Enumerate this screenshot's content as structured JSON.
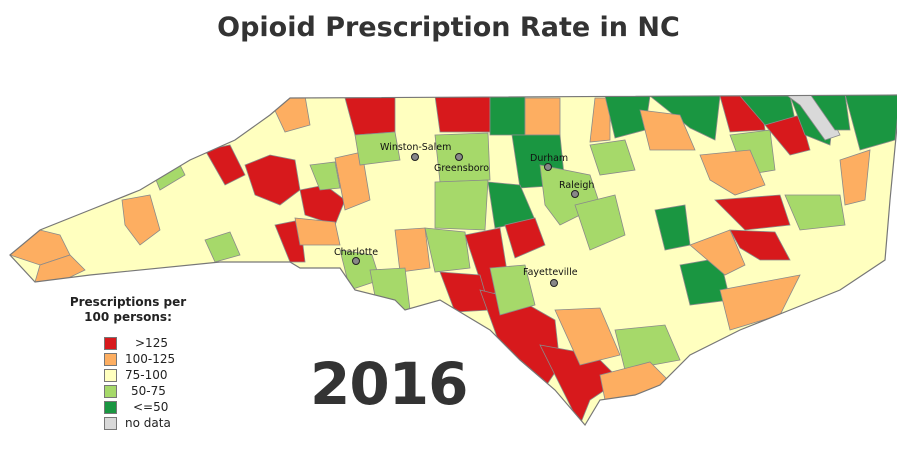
{
  "title": "Opioid Prescription Rate in NC",
  "year": "2016",
  "legend": {
    "title_line1": "Prescriptions per",
    "title_line2": "100 persons:",
    "items": [
      {
        "label": ">125",
        "color": "#d7191c"
      },
      {
        "label": "100-125",
        "color": "#fdae61"
      },
      {
        "label": "75-100",
        "color": "#ffffbf"
      },
      {
        "label": "50-75",
        "color": "#a6d96a"
      },
      {
        "label": "<=50",
        "color": "#1a9641"
      },
      {
        "label": "no data",
        "color": "#d9d9d9"
      }
    ]
  },
  "cities": [
    {
      "name": "Winston-Salem"
    },
    {
      "name": "Greensboro"
    },
    {
      "name": "Durham"
    },
    {
      "name": "Raleigh"
    },
    {
      "name": "Charlotte"
    },
    {
      "name": "Fayetteville"
    }
  ]
}
